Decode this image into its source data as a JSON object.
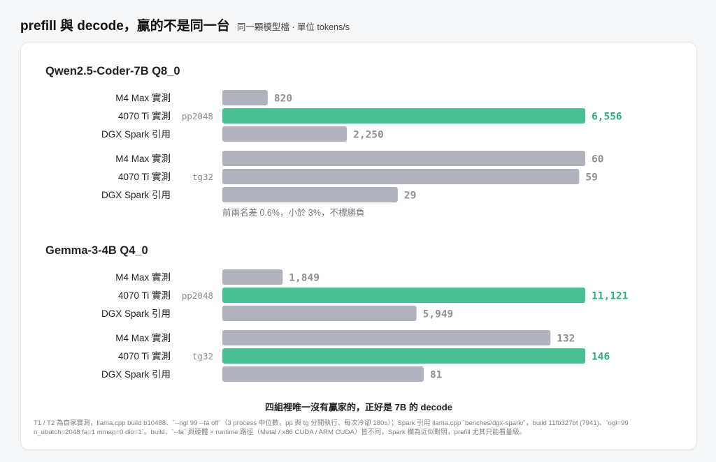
{
  "header": {
    "title": "prefill 與 decode，贏的不是同一台",
    "subtitle": "同一顆模型檔 · 單位 tokens/s"
  },
  "colors": {
    "highlight": "#48c093",
    "normal": "#b0b3bd",
    "highlight_text": "#2fae7d",
    "normal_text": "#8d9099"
  },
  "chart_data": [
    {
      "type": "bar",
      "orientation": "horizontal",
      "title": "Qwen2.5-Coder-7B Q8_0",
      "groups": [
        {
          "label": "pp2048",
          "xlim": [
            0,
            6556
          ],
          "bars": [
            {
              "category": "M4 Max 實測",
              "value": 820,
              "value_label": "820",
              "highlight": false
            },
            {
              "category": "4070 Ti 實測",
              "value": 6556,
              "value_label": "6,556",
              "highlight": true
            },
            {
              "category": "DGX Spark 引用",
              "value": 2250,
              "value_label": "2,250",
              "highlight": false
            }
          ]
        },
        {
          "label": "tg32",
          "xlim": [
            0,
            60
          ],
          "bars": [
            {
              "category": "M4 Max 實測",
              "value": 60,
              "value_label": "60",
              "highlight": false
            },
            {
              "category": "4070 Ti 實測",
              "value": 59,
              "value_label": "59",
              "highlight": false
            },
            {
              "category": "DGX Spark 引用",
              "value": 29,
              "value_label": "29",
              "highlight": false
            }
          ],
          "note": "前兩名差 0.6%，小於 3%，不標勝負"
        }
      ]
    },
    {
      "type": "bar",
      "orientation": "horizontal",
      "title": "Gemma-3-4B Q4_0",
      "groups": [
        {
          "label": "pp2048",
          "xlim": [
            0,
            11121
          ],
          "bars": [
            {
              "category": "M4 Max 實測",
              "value": 1849,
              "value_label": "1,849",
              "highlight": false
            },
            {
              "category": "4070 Ti 實測",
              "value": 11121,
              "value_label": "11,121",
              "highlight": true
            },
            {
              "category": "DGX Spark 引用",
              "value": 5949,
              "value_label": "5,949",
              "highlight": false
            }
          ]
        },
        {
          "label": "tg32",
          "xlim": [
            0,
            146
          ],
          "bars": [
            {
              "category": "M4 Max 實測",
              "value": 132,
              "value_label": "132",
              "highlight": false
            },
            {
              "category": "4070 Ti 實測",
              "value": 146,
              "value_label": "146",
              "highlight": true
            },
            {
              "category": "DGX Spark 引用",
              "value": 81,
              "value_label": "81",
              "highlight": false
            }
          ]
        }
      ]
    }
  ],
  "bottom_note": "四組裡唯一沒有贏家的，正好是 7B 的 decode",
  "footnote": "T1 / T2 為自家實測，llama.cpp build b10488、`--ngl 99 --fa off`（3 process 中位數，pp 與 tg 分開執行、每次冷卻 180s）；Spark 引用 llama.cpp `benches/dgx-spark/`，build 11fb327bf (7941)、`ngl=99 n_ubatch=2048 fa=1 mmap=0 dio=1`。build、`--fa` 與硬體 × runtime 路徑（Metal / x86 CUDA / ARM CUDA）皆不同，Spark 欄為近似對照，prefill 尤其只能看量級。"
}
